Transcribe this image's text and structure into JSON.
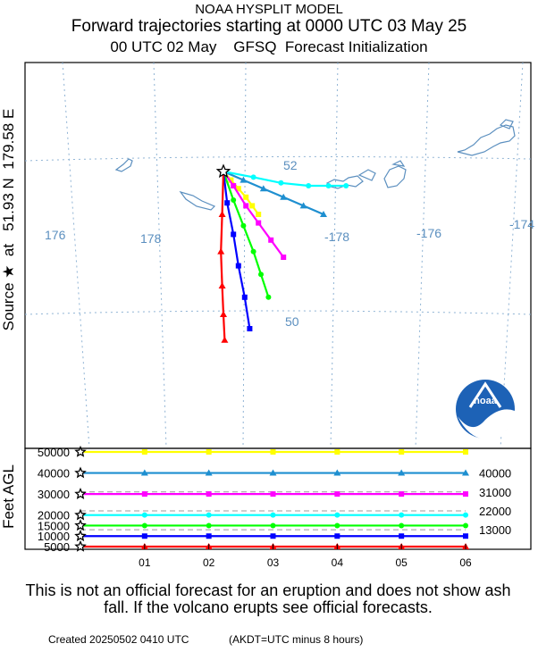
{
  "header": {
    "line1": "NOAA HYSPLIT MODEL",
    "line2": "Forward trajectories starting at 0000 UTC 03 May 25",
    "line3": "00 UTC 02 May    GFSQ  Forecast Initialization"
  },
  "source_label": "Source ★  at   51.93 N  179.58 E",
  "feet_label": "Feet AGL",
  "disclaimer": "This is not an official forecast for an eruption and does not show ash fall. If the volcano erupts see official forecasts.",
  "footer": {
    "created": "Created 20250502 0410 UTC",
    "timezone": "(AKDT=UTC minus 8 hours)"
  },
  "logo_text": "noaa",
  "colors": {
    "50000": "#ffff00",
    "40000": "#1e8fd0",
    "30000": "#ff00ff",
    "20000": "#00ffff",
    "15000": "#00ff00",
    "10000": "#0000ff",
    "5000": "#ff0000",
    "grid": "#8fb3d4",
    "coast": "#5b8fbf",
    "grid_label": "#5b8fbf"
  },
  "chart_data": [
    {
      "type": "line",
      "subtype": "trajectory_map",
      "source": {
        "lat": 51.93,
        "lon": 179.58
      },
      "lon_grid_labels": [
        "176",
        "178",
        "-178",
        "-176",
        "-174"
      ],
      "lat_grid_labels": [
        "52",
        "50"
      ],
      "series": [
        {
          "height": 50000,
          "path": [
            [
              0,
              0
            ],
            [
              0.3,
              -0.3
            ],
            [
              0.6,
              -0.6
            ],
            [
              0.9,
              -0.9
            ],
            [
              1.15,
              -1.2
            ],
            [
              1.4,
              -1.5
            ]
          ]
        },
        {
          "height": 40000,
          "path": [
            [
              0,
              0
            ],
            [
              0.8,
              -0.3
            ],
            [
              1.6,
              -0.6
            ],
            [
              2.4,
              -0.9
            ],
            [
              3.2,
              -1.2
            ],
            [
              4.0,
              -1.5
            ]
          ]
        },
        {
          "height": 30000,
          "path": [
            [
              0,
              0
            ],
            [
              0.4,
              -0.5
            ],
            [
              0.9,
              -1.2
            ],
            [
              1.4,
              -1.8
            ],
            [
              1.9,
              -2.4
            ],
            [
              2.4,
              -3.0
            ]
          ]
        },
        {
          "height": 20000,
          "path": [
            [
              0,
              0
            ],
            [
              1.2,
              -0.2
            ],
            [
              2.3,
              -0.4
            ],
            [
              3.4,
              -0.5
            ],
            [
              4.2,
              -0.5
            ],
            [
              4.9,
              -0.5
            ]
          ]
        },
        {
          "height": 15000,
          "path": [
            [
              0,
              0
            ],
            [
              0.4,
              -1.0
            ],
            [
              0.8,
              -1.9
            ],
            [
              1.2,
              -2.8
            ],
            [
              1.5,
              -3.6
            ],
            [
              1.8,
              -4.4
            ]
          ]
        },
        {
          "height": 10000,
          "path": [
            [
              0,
              0
            ],
            [
              0.15,
              -1.1
            ],
            [
              0.4,
              -2.2
            ],
            [
              0.6,
              -3.3
            ],
            [
              0.85,
              -4.4
            ],
            [
              1.05,
              -5.5
            ]
          ]
        },
        {
          "height": 5000,
          "path": [
            [
              0,
              0
            ],
            [
              -0.05,
              -1.5
            ],
            [
              -0.1,
              -2.8
            ],
            [
              -0.05,
              -4.0
            ],
            [
              0,
              -5.0
            ],
            [
              0.05,
              -5.9
            ]
          ]
        }
      ]
    },
    {
      "type": "line",
      "subtype": "height_profile",
      "xlabel": "",
      "ylabel": "Feet AGL",
      "x_ticks": [
        "01",
        "02",
        "03",
        "04",
        "05",
        "06"
      ],
      "y_left_labels": [
        "50000",
        "40000",
        "30000",
        "20000",
        "15000",
        "10000",
        "5000"
      ],
      "y_right_labels": [
        "40000",
        "31000",
        "22000",
        "13000"
      ],
      "series": [
        {
          "name": "",
          "start": 50000,
          "values": [
            50000,
            50000,
            50000,
            50000,
            50000,
            50000
          ]
        },
        {
          "name": "",
          "start": 40000,
          "values": [
            40000,
            40000,
            40000,
            40000,
            40000,
            40000
          ]
        },
        {
          "name": "",
          "start": 30000,
          "values": [
            30000,
            30000,
            30000,
            30000,
            30000,
            30000
          ]
        },
        {
          "name": "",
          "start": 20000,
          "values": [
            20000,
            20000,
            20000,
            20000,
            20000,
            20000
          ]
        },
        {
          "name": "",
          "start": 15000,
          "values": [
            15000,
            15000,
            15000,
            15000,
            15000,
            15000
          ]
        },
        {
          "name": "",
          "start": 10000,
          "values": [
            10000,
            10000,
            10000,
            10000,
            10000,
            10000
          ]
        },
        {
          "name": "",
          "start": 5000,
          "values": [
            5000,
            5000,
            5000,
            5000,
            5000,
            5000
          ]
        }
      ]
    }
  ]
}
